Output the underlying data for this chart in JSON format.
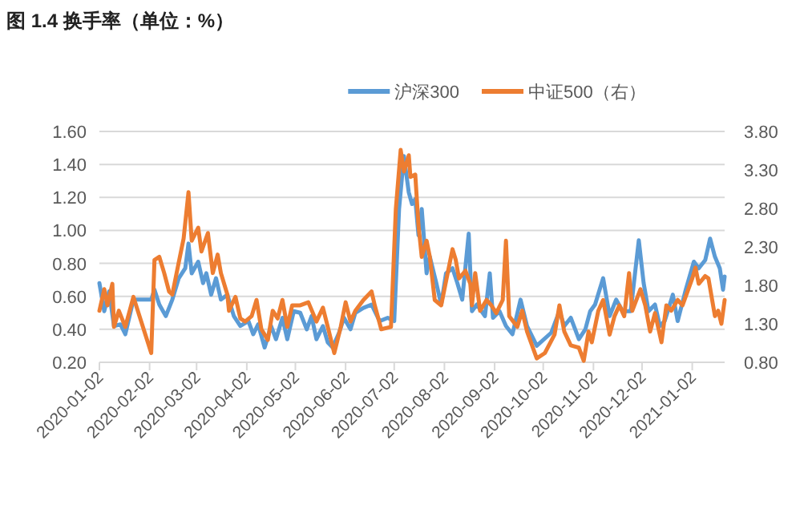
{
  "chart_data": {
    "type": "line",
    "title": "图 1.4 换手率（单位：%）",
    "legend": "top",
    "grid": "y",
    "xlim": [
      "2020-01-02",
      "2021-01-22"
    ],
    "xticks": [
      "2020-01-02",
      "2020-02-02",
      "2020-03-02",
      "2020-04-02",
      "2020-05-02",
      "2020-06-02",
      "2020-07-02",
      "2020-08-02",
      "2020-09-02",
      "2020-10-02",
      "2020-11-02",
      "2020-12-02",
      "2021-01-02"
    ],
    "ylim": [
      0.2,
      1.6
    ],
    "yticks": [
      {
        "value": 0.2,
        "label": "0.20"
      },
      {
        "value": 0.4,
        "label": "0.40"
      },
      {
        "value": 0.6,
        "label": "0.60"
      },
      {
        "value": 0.8,
        "label": "0.80"
      },
      {
        "value": 1.0,
        "label": "1.00"
      },
      {
        "value": 1.2,
        "label": "1.20"
      },
      {
        "value": 1.4,
        "label": "1.40"
      },
      {
        "value": 1.6,
        "label": "1.60"
      }
    ],
    "y2lim": [
      0.8,
      3.8
    ],
    "y2ticks": [
      {
        "value": 0.8,
        "label": "0.80"
      },
      {
        "value": 1.3,
        "label": "1.30"
      },
      {
        "value": 1.8,
        "label": "1.80"
      },
      {
        "value": 2.3,
        "label": "2.30"
      },
      {
        "value": 2.8,
        "label": "2.80"
      },
      {
        "value": 3.3,
        "label": "3.30"
      },
      {
        "value": 3.8,
        "label": "3.80"
      }
    ],
    "series": [
      {
        "name": "沪深300",
        "color": "#5b9bd5",
        "x": [
          "2020-01-02",
          "2020-01-05",
          "2020-01-08",
          "2020-01-11",
          "2020-01-15",
          "2020-01-18",
          "2020-01-23",
          "2020-02-03",
          "2020-02-05",
          "2020-02-08",
          "2020-02-12",
          "2020-02-16",
          "2020-02-20",
          "2020-02-24",
          "2020-02-26",
          "2020-02-28",
          "2020-03-03",
          "2020-03-06",
          "2020-03-08",
          "2020-03-11",
          "2020-03-14",
          "2020-03-17",
          "2020-03-21",
          "2020-03-25",
          "2020-03-29",
          "2020-04-03",
          "2020-04-06",
          "2020-04-09",
          "2020-04-13",
          "2020-04-17",
          "2020-04-20",
          "2020-04-24",
          "2020-04-27",
          "2020-05-01",
          "2020-05-05",
          "2020-05-09",
          "2020-05-12",
          "2020-05-15",
          "2020-05-19",
          "2020-05-22",
          "2020-05-25",
          "2020-05-29",
          "2020-06-01",
          "2020-06-05",
          "2020-06-08",
          "2020-06-13",
          "2020-06-18",
          "2020-06-23",
          "2020-06-28",
          "2020-07-02",
          "2020-07-05",
          "2020-07-08",
          "2020-07-11",
          "2020-07-13",
          "2020-07-15",
          "2020-07-17",
          "2020-07-19",
          "2020-07-22",
          "2020-07-24",
          "2020-07-28",
          "2020-07-31",
          "2020-08-03",
          "2020-08-07",
          "2020-08-10",
          "2020-08-13",
          "2020-08-17",
          "2020-08-19",
          "2020-08-22",
          "2020-08-27",
          "2020-08-30",
          "2020-09-01",
          "2020-09-05",
          "2020-09-09",
          "2020-09-13",
          "2020-09-18",
          "2020-09-22",
          "2020-09-28",
          "2020-10-07",
          "2020-10-12",
          "2020-10-15",
          "2020-10-19",
          "2020-10-24",
          "2020-10-28",
          "2020-10-31",
          "2020-11-03",
          "2020-11-08",
          "2020-11-12",
          "2020-11-16",
          "2020-11-20",
          "2020-11-25",
          "2020-11-30",
          "2020-12-03",
          "2020-12-06",
          "2020-12-10",
          "2020-12-13",
          "2020-12-16",
          "2020-12-21",
          "2020-12-24",
          "2020-12-29",
          "2021-01-03",
          "2021-01-06",
          "2021-01-10",
          "2021-01-13",
          "2021-01-16",
          "2021-01-19",
          "2021-01-21",
          "2021-01-22"
        ],
        "values": [
          0.68,
          0.51,
          0.63,
          0.42,
          0.43,
          0.37,
          0.58,
          0.58,
          0.64,
          0.55,
          0.48,
          0.58,
          0.71,
          0.77,
          0.92,
          0.74,
          0.81,
          0.68,
          0.74,
          0.61,
          0.71,
          0.58,
          0.61,
          0.48,
          0.42,
          0.45,
          0.37,
          0.43,
          0.29,
          0.42,
          0.34,
          0.47,
          0.34,
          0.51,
          0.5,
          0.4,
          0.48,
          0.34,
          0.42,
          0.32,
          0.29,
          0.38,
          0.47,
          0.4,
          0.5,
          0.53,
          0.55,
          0.45,
          0.47,
          0.45,
          1.13,
          1.45,
          1.23,
          1.16,
          1.19,
          0.97,
          1.13,
          0.74,
          0.84,
          0.68,
          0.55,
          0.74,
          0.77,
          0.68,
          0.58,
          0.98,
          0.51,
          0.55,
          0.48,
          0.74,
          0.47,
          0.51,
          0.42,
          0.37,
          0.58,
          0.42,
          0.3,
          0.38,
          0.51,
          0.42,
          0.47,
          0.34,
          0.4,
          0.51,
          0.55,
          0.71,
          0.48,
          0.58,
          0.51,
          0.51,
          0.94,
          0.68,
          0.51,
          0.55,
          0.42,
          0.45,
          0.61,
          0.45,
          0.64,
          0.81,
          0.77,
          0.82,
          0.95,
          0.84,
          0.77,
          0.64,
          0.72
        ]
      },
      {
        "name": "中证500（右）",
        "color": "#ed7d31",
        "axis": "y2",
        "x": [
          "2020-01-02",
          "2020-01-05",
          "2020-01-07",
          "2020-01-10",
          "2020-01-11",
          "2020-01-14",
          "2020-01-18",
          "2020-01-23",
          "2020-02-03",
          "2020-02-05",
          "2020-02-08",
          "2020-02-11",
          "2020-02-14",
          "2020-02-16",
          "2020-02-20",
          "2020-02-23",
          "2020-02-26",
          "2020-02-28",
          "2020-03-03",
          "2020-03-05",
          "2020-03-09",
          "2020-03-12",
          "2020-03-15",
          "2020-03-17",
          "2020-03-21",
          "2020-03-22",
          "2020-03-26",
          "2020-03-29",
          "2020-04-01",
          "2020-04-05",
          "2020-04-08",
          "2020-04-11",
          "2020-04-15",
          "2020-04-18",
          "2020-04-21",
          "2020-04-24",
          "2020-04-27",
          "2020-04-30",
          "2020-05-05",
          "2020-05-10",
          "2020-05-15",
          "2020-05-19",
          "2020-05-22",
          "2020-05-26",
          "2020-05-30",
          "2020-06-02",
          "2020-06-05",
          "2020-06-08",
          "2020-06-13",
          "2020-06-18",
          "2020-06-20",
          "2020-06-24",
          "2020-06-30",
          "2020-07-03",
          "2020-07-06",
          "2020-07-08",
          "2020-07-11",
          "2020-07-12",
          "2020-07-15",
          "2020-07-17",
          "2020-07-19",
          "2020-07-22",
          "2020-07-24",
          "2020-07-27",
          "2020-07-31",
          "2020-08-04",
          "2020-08-07",
          "2020-08-09",
          "2020-08-11",
          "2020-08-15",
          "2020-08-18",
          "2020-08-19",
          "2020-08-21",
          "2020-08-24",
          "2020-08-28",
          "2020-08-31",
          "2020-09-03",
          "2020-09-07",
          "2020-09-09",
          "2020-09-11",
          "2020-09-16",
          "2020-09-19",
          "2020-09-22",
          "2020-09-28",
          "2020-10-03",
          "2020-10-09",
          "2020-10-12",
          "2020-10-15",
          "2020-10-19",
          "2020-10-24",
          "2020-10-27",
          "2020-10-30",
          "2020-11-01",
          "2020-11-05",
          "2020-11-08",
          "2020-11-12",
          "2020-11-15",
          "2020-11-18",
          "2020-11-21",
          "2020-11-24",
          "2020-11-26",
          "2020-12-01",
          "2020-12-04",
          "2020-12-07",
          "2020-12-10",
          "2020-12-14",
          "2020-12-17",
          "2020-12-20",
          "2020-12-24",
          "2020-12-27",
          "2021-01-02",
          "2021-01-04",
          "2021-01-06",
          "2021-01-10",
          "2021-01-12",
          "2021-01-16",
          "2021-01-18",
          "2021-01-20",
          "2021-01-22"
        ],
        "values": [
          1.47,
          1.75,
          1.54,
          1.82,
          1.26,
          1.47,
          1.26,
          1.65,
          0.92,
          2.13,
          2.17,
          1.96,
          1.72,
          1.68,
          2.1,
          2.41,
          3.01,
          2.38,
          2.55,
          2.24,
          2.48,
          1.96,
          2.2,
          1.96,
          1.68,
          1.47,
          1.65,
          1.37,
          1.33,
          1.4,
          1.61,
          1.23,
          1.09,
          1.47,
          1.37,
          1.61,
          1.26,
          1.54,
          1.54,
          1.58,
          1.33,
          1.51,
          1.26,
          0.92,
          1.26,
          1.58,
          1.33,
          1.47,
          1.61,
          1.72,
          1.54,
          1.23,
          1.26,
          2.79,
          3.56,
          3.28,
          3.49,
          3.21,
          3.24,
          2.58,
          2.17,
          2.38,
          2.17,
          1.61,
          1.54,
          1.96,
          2.27,
          2.13,
          1.89,
          1.99,
          1.82,
          1.54,
          1.96,
          1.47,
          1.61,
          1.54,
          1.44,
          1.61,
          2.38,
          1.4,
          1.26,
          1.47,
          1.2,
          0.85,
          0.92,
          1.16,
          1.54,
          1.2,
          1.02,
          0.99,
          0.82,
          1.2,
          1.06,
          1.47,
          1.61,
          1.16,
          1.4,
          1.54,
          1.4,
          1.96,
          1.47,
          1.75,
          1.54,
          1.2,
          1.44,
          1.06,
          1.54,
          1.47,
          1.61,
          1.54,
          1.89,
          2.03,
          1.82,
          1.92,
          1.89,
          1.4,
          1.47,
          1.3,
          1.61
        ]
      }
    ]
  }
}
